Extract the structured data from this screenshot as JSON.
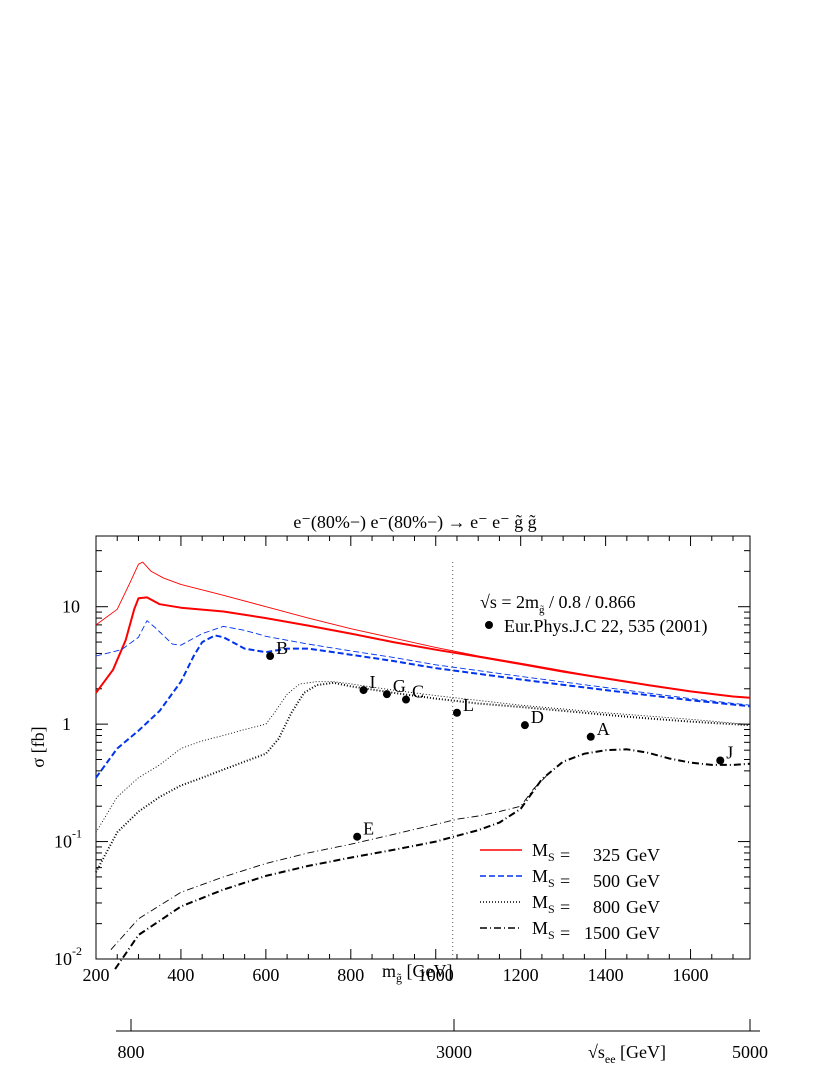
{
  "chart_data": {
    "type": "line",
    "title": {
      "text": "e⁻(80%−) e⁻(80%−) → e⁻ e⁻ g̃ g̃"
    },
    "xlabel": {
      "main": "m",
      "sub": "g̃",
      "unit": " [GeV]"
    },
    "ylabel": "σ [fb]",
    "xlim": [
      200,
      1740
    ],
    "ylim": [
      0.01,
      40
    ],
    "yscale": "log",
    "x_ticks": [
      200,
      400,
      600,
      800,
      1000,
      1200,
      1400,
      1600
    ],
    "y_ticks": [
      {
        "value": 0.01,
        "base": "10",
        "exp": "-2"
      },
      {
        "value": 0.1,
        "base": "10",
        "exp": "-1"
      },
      {
        "value": 1,
        "base": "1",
        "exp": ""
      },
      {
        "value": 10,
        "base": "10",
        "exp": ""
      }
    ],
    "secondary_axis": {
      "label": {
        "root": "√s",
        "sub": "ee",
        "unit": "  [GeV]"
      },
      "ticks": [
        {
          "label": "800",
          "value": 800
        },
        {
          "label": "3000",
          "value": 3000
        },
        {
          "label": "5000",
          "value": 5000
        }
      ]
    },
    "reference_line": {
      "x": 1040,
      "style": "dotted"
    },
    "annotation": {
      "line1_root": "√s",
      "line1_rest": " =  2m",
      "line1_sub": "g̃",
      "line1_tail": " / 0.8 / 0.866",
      "line2": "Eur.Phys.J.C 22, 535 (2001)"
    },
    "series": [
      {
        "name": "M_S =   325 GeV",
        "ms_value": "325",
        "color": "#ff0000",
        "dash": "solid",
        "variant": "0.8",
        "x": [
          200,
          240,
          270,
          290,
          300,
          320,
          350,
          400,
          500,
          600,
          700,
          800,
          900,
          1000,
          1100,
          1200,
          1300,
          1400,
          1500,
          1600,
          1700,
          1740
        ],
        "y": [
          1.85,
          2.9,
          5.2,
          9.5,
          11.8,
          12.0,
          10.5,
          9.8,
          9.1,
          8.0,
          6.9,
          5.9,
          5.0,
          4.3,
          3.75,
          3.25,
          2.8,
          2.45,
          2.15,
          1.9,
          1.72,
          1.68
        ]
      },
      {
        "name": "",
        "color": "#ff0000",
        "dash": "solid",
        "variant": "0.866",
        "x": [
          200,
          250,
          280,
          300,
          310,
          330,
          360,
          400,
          500,
          600,
          700,
          800,
          900,
          1000,
          1100,
          1200,
          1300,
          1400,
          1500,
          1600,
          1700,
          1740
        ],
        "y": [
          7.0,
          9.5,
          16.0,
          23.0,
          24.0,
          20.0,
          17.5,
          15.5,
          12.5,
          10.0,
          8.0,
          6.5,
          5.4,
          4.5,
          3.8,
          3.3,
          2.85,
          2.45,
          2.15,
          1.9,
          1.72,
          1.68
        ]
      },
      {
        "name": "M_S =   500 GeV",
        "ms_value": "500",
        "color": "#0033ee",
        "dash": "dashed",
        "variant": "0.8",
        "x": [
          200,
          250,
          300,
          350,
          400,
          430,
          450,
          480,
          500,
          550,
          600,
          650,
          700,
          800,
          900,
          1000,
          1200,
          1400,
          1600,
          1740
        ],
        "y": [
          0.35,
          0.62,
          0.88,
          1.3,
          2.3,
          3.8,
          5.0,
          5.7,
          5.5,
          4.4,
          4.1,
          4.4,
          4.4,
          3.9,
          3.45,
          3.0,
          2.4,
          1.95,
          1.6,
          1.42
        ]
      },
      {
        "name": "",
        "color": "#0033ee",
        "dash": "dashed",
        "variant": "0.866",
        "x": [
          200,
          260,
          300,
          320,
          340,
          380,
          400,
          450,
          500,
          550,
          600,
          700,
          800,
          900,
          1000,
          1200,
          1400,
          1600,
          1740
        ],
        "y": [
          3.8,
          4.3,
          5.5,
          7.6,
          6.6,
          4.8,
          4.7,
          5.9,
          6.8,
          6.3,
          5.6,
          4.8,
          4.2,
          3.7,
          3.2,
          2.55,
          2.05,
          1.65,
          1.45
        ]
      },
      {
        "name": "M_S =   800 GeV",
        "ms_value": "800",
        "color": "#000000",
        "dash": "dotted",
        "variant": "0.8",
        "x": [
          200,
          250,
          300,
          350,
          400,
          450,
          500,
          550,
          600,
          630,
          660,
          690,
          720,
          760,
          800,
          900,
          1000,
          1100,
          1200,
          1300,
          1400,
          1500,
          1600,
          1740
        ],
        "y": [
          0.055,
          0.12,
          0.18,
          0.24,
          0.3,
          0.35,
          0.41,
          0.48,
          0.56,
          0.75,
          1.25,
          1.85,
          2.15,
          2.25,
          2.1,
          1.85,
          1.65,
          1.5,
          1.4,
          1.3,
          1.2,
          1.12,
          1.05,
          0.98
        ]
      },
      {
        "name": "",
        "color": "#000000",
        "dash": "dotted",
        "variant": "0.866",
        "x": [
          200,
          250,
          300,
          350,
          400,
          450,
          500,
          550,
          600,
          620,
          650,
          680,
          720,
          760,
          800,
          900,
          1000,
          1200,
          1400,
          1600,
          1740
        ],
        "y": [
          0.12,
          0.24,
          0.35,
          0.45,
          0.62,
          0.72,
          0.8,
          0.9,
          1.0,
          1.25,
          1.8,
          2.2,
          2.3,
          2.3,
          2.2,
          1.95,
          1.75,
          1.45,
          1.25,
          1.1,
          0.99
        ]
      },
      {
        "name": "M_S = 1500 GeV",
        "ms_value": "1500",
        "color": "#000000",
        "dash": "dashdot",
        "variant": "0.8",
        "x": [
          245,
          300,
          400,
          500,
          600,
          700,
          800,
          900,
          1000,
          1050,
          1100,
          1150,
          1200,
          1250,
          1300,
          1350,
          1400,
          1450,
          1500,
          1550,
          1600,
          1650,
          1700,
          1740
        ],
        "y": [
          0.0082,
          0.016,
          0.028,
          0.039,
          0.051,
          0.062,
          0.073,
          0.085,
          0.1,
          0.112,
          0.125,
          0.145,
          0.19,
          0.34,
          0.48,
          0.56,
          0.6,
          0.61,
          0.57,
          0.51,
          0.47,
          0.45,
          0.45,
          0.46
        ]
      },
      {
        "name": "",
        "color": "#000000",
        "dash": "dashdot",
        "variant": "0.866",
        "x": [
          235,
          300,
          400,
          500,
          600,
          700,
          800,
          900,
          1000,
          1050,
          1100,
          1150,
          1200,
          1230,
          1260
        ],
        "y": [
          0.012,
          0.022,
          0.037,
          0.05,
          0.065,
          0.08,
          0.095,
          0.115,
          0.14,
          0.155,
          0.165,
          0.18,
          0.2,
          0.28,
          0.36
        ]
      }
    ],
    "points": [
      {
        "label": "B",
        "x": 610,
        "y": 3.8
      },
      {
        "label": "I",
        "x": 830,
        "y": 1.95
      },
      {
        "label": "G",
        "x": 885,
        "y": 1.8
      },
      {
        "label": "C",
        "x": 930,
        "y": 1.62
      },
      {
        "label": "L",
        "x": 1050,
        "y": 1.25
      },
      {
        "label": "D",
        "x": 1210,
        "y": 0.98
      },
      {
        "label": "A",
        "x": 1365,
        "y": 0.78
      },
      {
        "label": "J",
        "x": 1670,
        "y": 0.49
      },
      {
        "label": "E",
        "x": 815,
        "y": 0.11
      }
    ],
    "legend": {
      "placement": "bottom-right",
      "prefix": "M",
      "sub": "S"
    }
  }
}
